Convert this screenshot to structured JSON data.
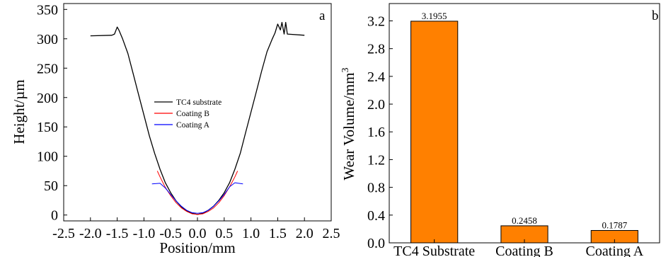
{
  "chart_data": [
    {
      "type": "line",
      "panel_label": "a",
      "xlabel": "Position/mm",
      "ylabel": "Height/µm",
      "xlim": [
        -2.5,
        2.5
      ],
      "ylim": [
        -10,
        360
      ],
      "x_ticks": [
        "-2.5",
        "-2.0",
        "-1.5",
        "-1.0",
        "-0.5",
        "0.0",
        "0.5",
        "1.0",
        "1.5",
        "2.0",
        "2.5"
      ],
      "y_ticks": [
        "0",
        "50",
        "100",
        "150",
        "200",
        "250",
        "300",
        "350"
      ],
      "legend_position": "center",
      "series": [
        {
          "name": "TC4 substrate",
          "color": "#000000",
          "points": [
            [
              -2.0,
              305
            ],
            [
              -1.6,
              306
            ],
            [
              -1.55,
              308
            ],
            [
              -1.5,
              320
            ],
            [
              -1.47,
              315
            ],
            [
              -1.4,
              300
            ],
            [
              -1.3,
              275
            ],
            [
              -1.2,
              240
            ],
            [
              -1.1,
              205
            ],
            [
              -1.0,
              170
            ],
            [
              -0.9,
              135
            ],
            [
              -0.8,
              105
            ],
            [
              -0.7,
              78
            ],
            [
              -0.6,
              55
            ],
            [
              -0.5,
              38
            ],
            [
              -0.4,
              24
            ],
            [
              -0.3,
              14
            ],
            [
              -0.2,
              7
            ],
            [
              -0.1,
              3
            ],
            [
              0.0,
              1
            ],
            [
              0.1,
              3
            ],
            [
              0.2,
              8
            ],
            [
              0.3,
              15
            ],
            [
              0.4,
              25
            ],
            [
              0.5,
              38
            ],
            [
              0.6,
              55
            ],
            [
              0.7,
              78
            ],
            [
              0.8,
              105
            ],
            [
              0.9,
              140
            ],
            [
              1.0,
              175
            ],
            [
              1.1,
              210
            ],
            [
              1.2,
              245
            ],
            [
              1.3,
              278
            ],
            [
              1.4,
              300
            ],
            [
              1.45,
              310
            ],
            [
              1.5,
              325
            ],
            [
              1.55,
              315
            ],
            [
              1.58,
              328
            ],
            [
              1.62,
              308
            ],
            [
              1.65,
              328
            ],
            [
              1.68,
              308
            ],
            [
              2.0,
              306
            ]
          ]
        },
        {
          "name": "Coating B",
          "color": "#ff0000",
          "points": [
            [
              -0.75,
              75
            ],
            [
              -0.7,
              65
            ],
            [
              -0.6,
              47
            ],
            [
              -0.5,
              33
            ],
            [
              -0.4,
              21
            ],
            [
              -0.3,
              12
            ],
            [
              -0.2,
              6
            ],
            [
              -0.1,
              2
            ],
            [
              0.0,
              1
            ],
            [
              0.1,
              2
            ],
            [
              0.2,
              6
            ],
            [
              0.3,
              12
            ],
            [
              0.4,
              21
            ],
            [
              0.5,
              33
            ],
            [
              0.6,
              48
            ],
            [
              0.7,
              65
            ],
            [
              0.75,
              75
            ]
          ]
        },
        {
          "name": "Coating A",
          "color": "#0000ff",
          "points": [
            [
              -0.85,
              53
            ],
            [
              -0.7,
              54
            ],
            [
              -0.6,
              46
            ],
            [
              -0.5,
              35
            ],
            [
              -0.4,
              24
            ],
            [
              -0.3,
              15
            ],
            [
              -0.2,
              8
            ],
            [
              -0.1,
              4
            ],
            [
              0.0,
              3
            ],
            [
              0.1,
              4
            ],
            [
              0.2,
              8
            ],
            [
              0.3,
              15
            ],
            [
              0.4,
              24
            ],
            [
              0.5,
              35
            ],
            [
              0.6,
              48
            ],
            [
              0.7,
              55
            ],
            [
              0.85,
              53
            ]
          ]
        }
      ]
    },
    {
      "type": "bar",
      "panel_label": "b",
      "xlabel": "",
      "ylabel": "Wear Volume/mm",
      "ylabel_superscript": "3",
      "categories": [
        "TC4 Substrate",
        "Coating B",
        "Coating A"
      ],
      "values": [
        3.1955,
        0.2458,
        0.1787
      ],
      "data_labels": [
        "3.1955",
        "0.2458",
        "0.1787"
      ],
      "ylim": [
        0,
        3.45
      ],
      "y_ticks": [
        "0.0",
        "0.4",
        "0.8",
        "1.2",
        "1.6",
        "2.0",
        "2.4",
        "2.8",
        "3.2"
      ],
      "bar_color": "#ff8000"
    }
  ]
}
